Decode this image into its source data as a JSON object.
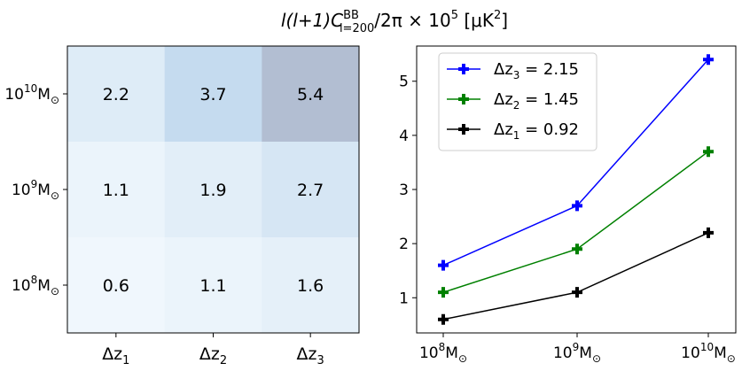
{
  "title": {
    "main": "l(l+1)C",
    "sup": "BB",
    "sub": "l=200",
    "rest": "/2π × 10",
    "exp": "5",
    "unit": " [μK",
    "unit_exp": "2",
    "unit_end": "]"
  },
  "chart_data": [
    {
      "type": "heatmap",
      "columns": [
        {
          "base": "Δz",
          "sub": "1"
        },
        {
          "base": "Δz",
          "sub": "2"
        },
        {
          "base": "Δz",
          "sub": "3"
        }
      ],
      "rows": [
        {
          "base": "10",
          "exp": "10",
          "unit": "M",
          "sub": "⊙"
        },
        {
          "base": "10",
          "exp": "9",
          "unit": "M",
          "sub": "⊙"
        },
        {
          "base": "10",
          "exp": "8",
          "unit": "M",
          "sub": "⊙"
        }
      ],
      "values": [
        [
          "2.2",
          "3.7",
          "5.4"
        ],
        [
          "1.1",
          "1.9",
          "2.7"
        ],
        [
          "0.6",
          "1.1",
          "1.6"
        ]
      ],
      "color_range": [
        0,
        6
      ],
      "colormap": "Blues-to-grey"
    },
    {
      "type": "line",
      "x": [
        {
          "base": "10",
          "exp": "8",
          "unit": "M",
          "sub": "⊙"
        },
        {
          "base": "10",
          "exp": "9",
          "unit": "M",
          "sub": "⊙"
        },
        {
          "base": "10",
          "exp": "10",
          "unit": "M",
          "sub": "⊙"
        }
      ],
      "yticks": [
        "1",
        "2",
        "3",
        "4",
        "5"
      ],
      "yticks_num": [
        1,
        2,
        3,
        4,
        5
      ],
      "ylim": [
        0.35,
        5.65
      ],
      "legend_placement": "top-left",
      "series": [
        {
          "legend_base": "Δz",
          "legend_sub": "3",
          "legend_value": " = 2.15",
          "color": "#0000ff",
          "values": [
            1.6,
            2.7,
            5.4
          ]
        },
        {
          "legend_base": "Δz",
          "legend_sub": "2",
          "legend_value": " = 1.45",
          "color": "#008000",
          "values": [
            1.1,
            1.9,
            3.7
          ]
        },
        {
          "legend_base": "Δz",
          "legend_sub": "1",
          "legend_value": " = 0.92",
          "color": "#000000",
          "values": [
            0.6,
            1.1,
            2.2
          ]
        }
      ]
    }
  ]
}
